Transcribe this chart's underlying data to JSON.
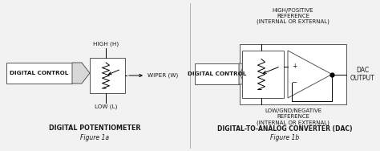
{
  "bg_color": "#f2f2f2",
  "box_color": "#ffffff",
  "text_color": "#1a1a1a",
  "fig_width": 4.74,
  "fig_height": 1.88,
  "dpi": 100,
  "left_title": "DIGITAL POTENTIOMETER",
  "left_subtitle": "Figure 1a",
  "right_title": "DIGITAL-TO-ANALOG CONVERTER (DAC)",
  "right_subtitle": "Figure 1b",
  "left_labels": {
    "high": "HIGH (H)",
    "low": "LOW (L)",
    "wiper": "WIPER (W)",
    "ctrl": "DIGITAL CONTROL"
  },
  "right_labels": {
    "high_ref": "HIGH/POSITIVE\nREFERENCE\n(INTERNAL OR EXTERNAL)",
    "low_ref": "LOW/GND/NEGATIVE\nREFERENCE\n(INTERNAL OR EXTERNAL)",
    "dac_out": "DAC\nOUTPUT",
    "ctrl": "DIGITAL CONTROL"
  }
}
